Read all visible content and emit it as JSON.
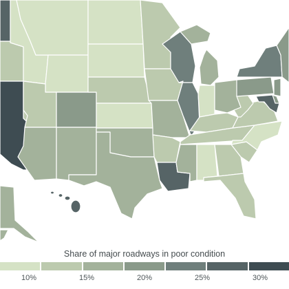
{
  "legend": {
    "title": "Share of major roadways in poor condition",
    "ticks": [
      "10%",
      "15%",
      "20%",
      "25%",
      "30%"
    ],
    "colors": [
      "#d5e2c5",
      "#bccaae",
      "#a3b29b",
      "#8a9a8a",
      "#6f7f7c",
      "#566466",
      "#3e4c52"
    ]
  },
  "states": [
    {
      "name": "Washington",
      "bin": 5
    },
    {
      "name": "Oregon",
      "bin": 1
    },
    {
      "name": "California",
      "bin": 6
    },
    {
      "name": "Idaho",
      "bin": 0
    },
    {
      "name": "Nevada",
      "bin": 1
    },
    {
      "name": "Montana",
      "bin": 0
    },
    {
      "name": "Wyoming",
      "bin": 0
    },
    {
      "name": "Utah",
      "bin": 1
    },
    {
      "name": "Colorado",
      "bin": 3
    },
    {
      "name": "Arizona",
      "bin": 2
    },
    {
      "name": "New Mexico",
      "bin": 2
    },
    {
      "name": "North Dakota",
      "bin": 0
    },
    {
      "name": "South Dakota",
      "bin": 0
    },
    {
      "name": "Nebraska",
      "bin": 1
    },
    {
      "name": "Kansas",
      "bin": 0
    },
    {
      "name": "Oklahoma",
      "bin": 2
    },
    {
      "name": "Texas",
      "bin": 2
    },
    {
      "name": "Minnesota",
      "bin": 1
    },
    {
      "name": "Iowa",
      "bin": 1
    },
    {
      "name": "Missouri",
      "bin": 2
    },
    {
      "name": "Arkansas",
      "bin": 1
    },
    {
      "name": "Louisiana",
      "bin": 5
    },
    {
      "name": "Wisconsin",
      "bin": 4
    },
    {
      "name": "Illinois",
      "bin": 4
    },
    {
      "name": "Michigan",
      "bin": 2
    },
    {
      "name": "Indiana",
      "bin": 0
    },
    {
      "name": "Ohio",
      "bin": 2
    },
    {
      "name": "Kentucky",
      "bin": 1
    },
    {
      "name": "Tennessee",
      "bin": 1
    },
    {
      "name": "Mississippi",
      "bin": 2
    },
    {
      "name": "Alabama",
      "bin": 0
    },
    {
      "name": "Georgia",
      "bin": 1
    },
    {
      "name": "Florida",
      "bin": 1
    },
    {
      "name": "South Carolina",
      "bin": 1
    },
    {
      "name": "North Carolina",
      "bin": 0
    },
    {
      "name": "Virginia",
      "bin": 1
    },
    {
      "name": "West Virginia",
      "bin": 1
    },
    {
      "name": "Pennsylvania",
      "bin": 3
    },
    {
      "name": "New York",
      "bin": 4
    },
    {
      "name": "New England",
      "bin": 3
    },
    {
      "name": "New Jersey",
      "bin": 3
    },
    {
      "name": "Maryland",
      "bin": 5
    },
    {
      "name": "Delaware",
      "bin": 3
    },
    {
      "name": "Alaska",
      "bin": 2
    },
    {
      "name": "Hawaii",
      "bin": 5
    }
  ]
}
